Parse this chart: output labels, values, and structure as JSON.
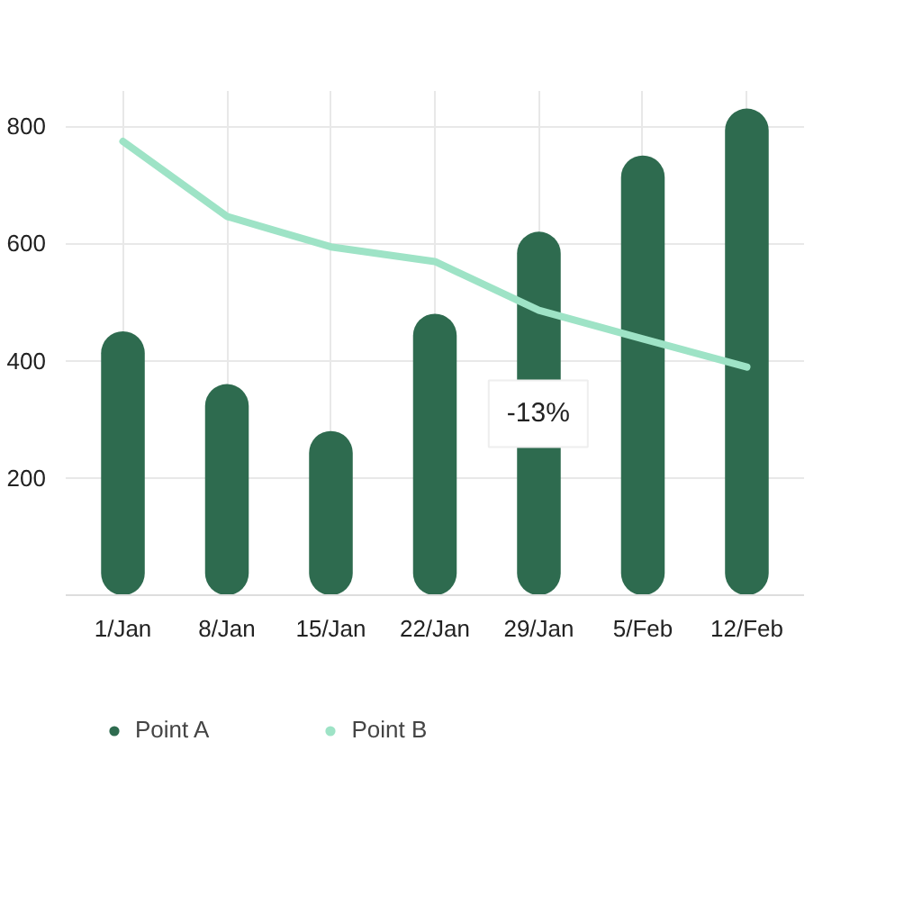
{
  "chart_data": {
    "type": "bar",
    "categories": [
      "1/Jan",
      "8/Jan",
      "15/Jan",
      "22/Jan",
      "29/Jan",
      "5/Feb",
      "12/Feb"
    ],
    "series": [
      {
        "name": "Point A",
        "color": "#2e6b4f",
        "values": [
          450,
          360,
          280,
          480,
          620,
          750,
          830
        ]
      },
      {
        "name": "Point B",
        "color": "#9ee3c6",
        "type": "line",
        "values": [
          774,
          646,
          594,
          569,
          486,
          437,
          389
        ]
      }
    ],
    "ylim": [
      0,
      860
    ],
    "yticks": [
      200,
      400,
      600,
      800
    ],
    "grid": true,
    "legend": "bottom",
    "annotations": [
      "-13%"
    ]
  }
}
